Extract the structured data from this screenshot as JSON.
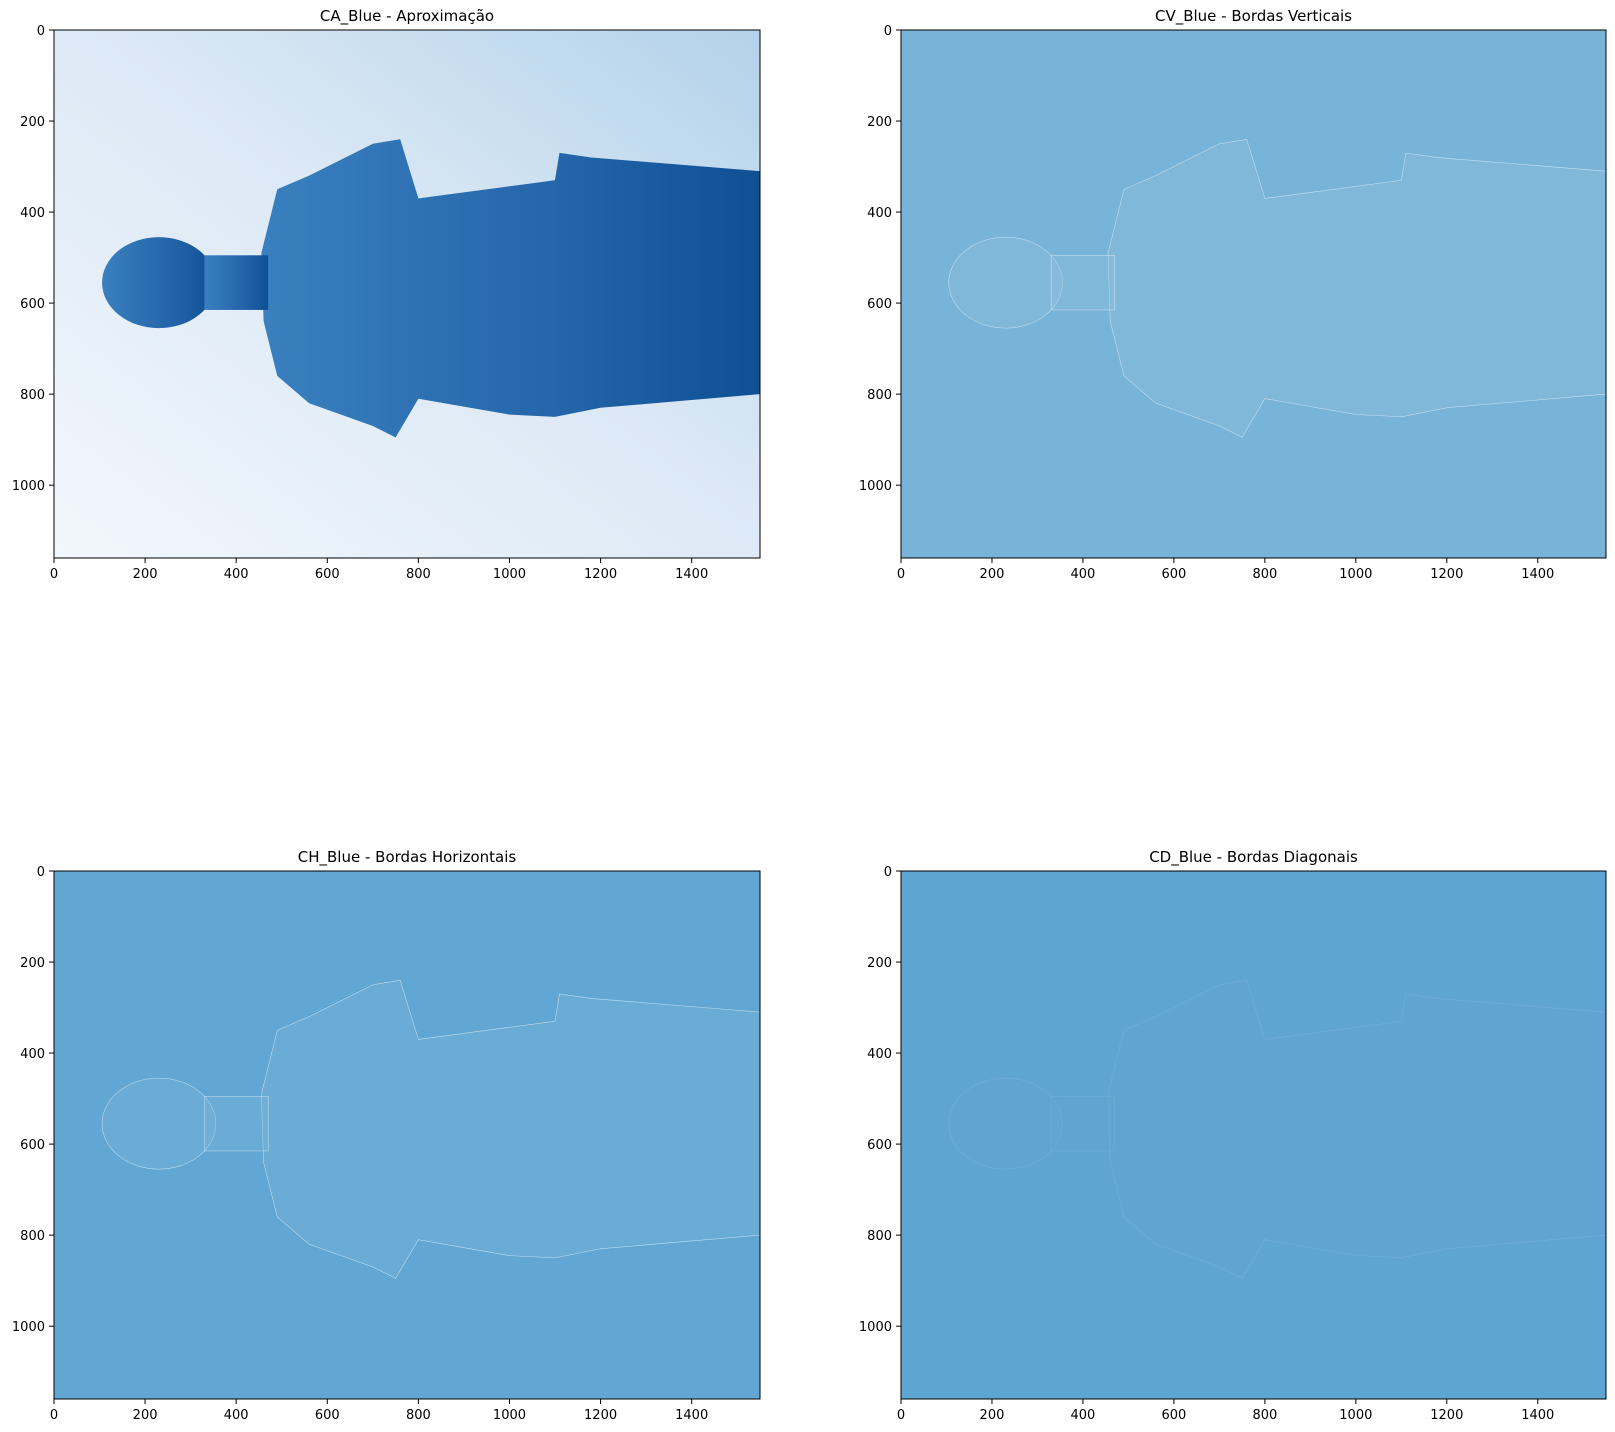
{
  "chart_data": [
    {
      "type": "heatmap",
      "title": "CA_Blue - Aproximação",
      "colormap": "Blues",
      "xlim": [
        0,
        1550
      ],
      "ylim": [
        1160,
        0
      ],
      "xticks": [
        0,
        200,
        400,
        600,
        800,
        1000,
        1200,
        1400
      ],
      "yticks": [
        0,
        200,
        400,
        600,
        800,
        1000
      ],
      "background_color": "#dce9f6",
      "subject_color": "#2a6fb3"
    },
    {
      "type": "heatmap",
      "title": "CV_Blue - Bordas Verticais",
      "colormap": "Blues",
      "xlim": [
        0,
        1550
      ],
      "ylim": [
        1160,
        0
      ],
      "xticks": [
        0,
        200,
        400,
        600,
        800,
        1000,
        1200,
        1400
      ],
      "yticks": [
        0,
        200,
        400,
        600,
        800,
        1000
      ],
      "background_color": "#78b4d8",
      "subject_color": "#8fc1df"
    },
    {
      "type": "heatmap",
      "title": "CH_Blue - Bordas Horizontais",
      "colormap": "Blues",
      "xlim": [
        0,
        1550
      ],
      "ylim": [
        1160,
        0
      ],
      "xticks": [
        0,
        200,
        400,
        600,
        800,
        1000,
        1200,
        1400
      ],
      "yticks": [
        0,
        200,
        400,
        600,
        800,
        1000
      ],
      "background_color": "#62a7d3",
      "subject_color": "#7bb6dc"
    },
    {
      "type": "heatmap",
      "title": "CD_Blue - Bordas Diagonais",
      "colormap": "Blues",
      "xlim": [
        0,
        1550
      ],
      "ylim": [
        1160,
        0
      ],
      "xticks": [
        0,
        200,
        400,
        600,
        800,
        1000,
        1200,
        1400
      ],
      "yticks": [
        0,
        200,
        400,
        600,
        800,
        1000
      ],
      "background_color": "#5fa5d2",
      "subject_color": "#69abd5"
    }
  ]
}
